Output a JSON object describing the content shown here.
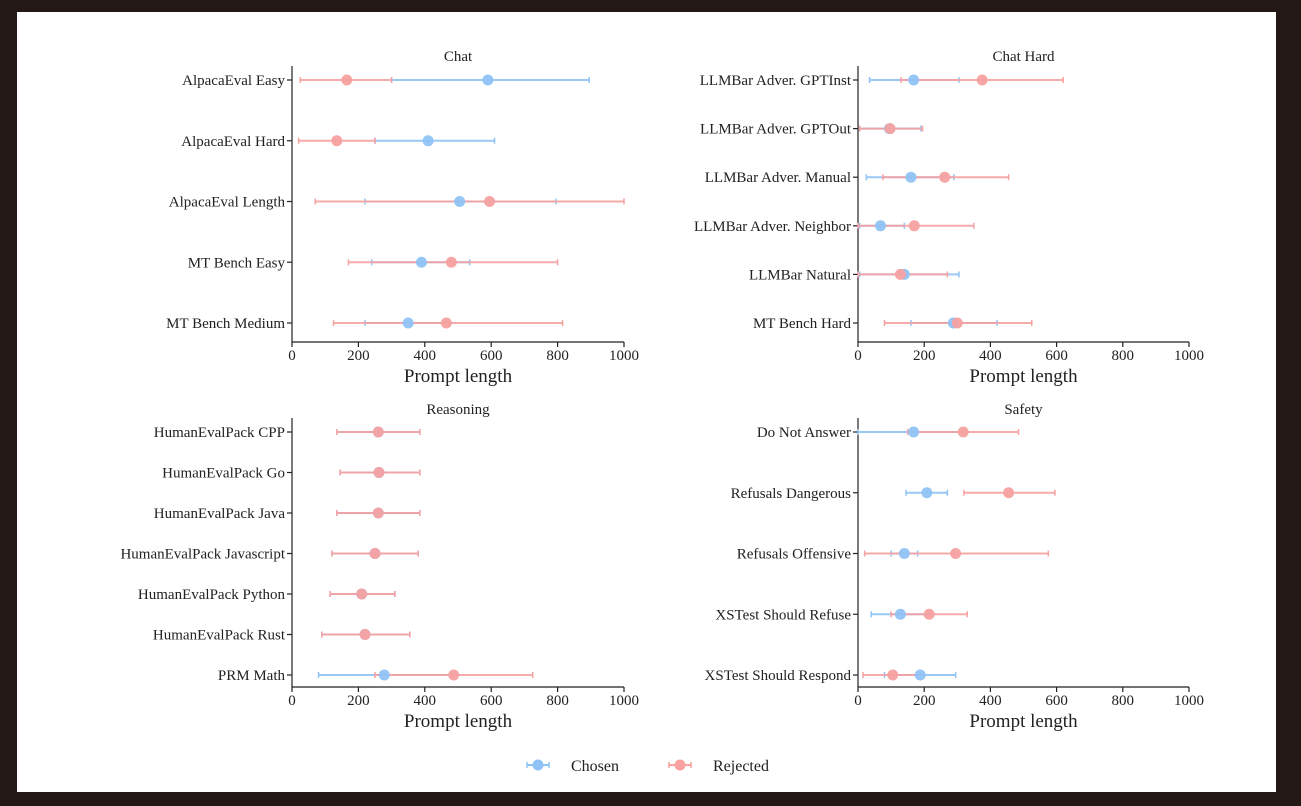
{
  "figure": {
    "legend": [
      {
        "name": "Chosen",
        "color": "#8fc3f5"
      },
      {
        "name": "Rejected",
        "color": "#f7a1a1"
      }
    ]
  },
  "chart_data": [
    {
      "type": "errorbar",
      "title": "Chat",
      "xlabel": "Prompt length",
      "xlim": [
        0,
        1000
      ],
      "xticks": [
        0,
        200,
        400,
        600,
        800,
        1000
      ],
      "categories": [
        "AlpacaEval Easy",
        "AlpacaEval Hard",
        "AlpacaEval Length",
        "MT Bench Easy",
        "MT Bench Medium"
      ],
      "series": [
        {
          "name": "Chosen",
          "color": "#8fc3f5",
          "mean": [
            590,
            410,
            505,
            390,
            350
          ],
          "low": [
            300,
            250,
            220,
            240,
            220
          ],
          "high": [
            895,
            610,
            795,
            535,
            470
          ]
        },
        {
          "name": "Rejected",
          "color": "#f7a1a1",
          "mean": [
            165,
            135,
            595,
            480,
            465
          ],
          "low": [
            25,
            20,
            70,
            170,
            125
          ],
          "high": [
            300,
            250,
            1000,
            800,
            815
          ]
        }
      ]
    },
    {
      "type": "errorbar",
      "title": "Chat Hard",
      "xlabel": "Prompt length",
      "xlim": [
        0,
        1000
      ],
      "xticks": [
        0,
        200,
        400,
        600,
        800,
        1000
      ],
      "categories": [
        "LLMBar Adver. GPTInst",
        "LLMBar Adver. GPTOut",
        "LLMBar Adver. Manual",
        "LLMBar Adver. Neighbor",
        "LLMBar Natural",
        "MT Bench Hard"
      ],
      "series": [
        {
          "name": "Chosen",
          "color": "#8fc3f5",
          "mean": [
            168,
            95,
            160,
            68,
            140,
            288
          ],
          "low": [
            35,
            5,
            25,
            5,
            5,
            160
          ],
          "high": [
            305,
            190,
            290,
            140,
            305,
            420
          ]
        },
        {
          "name": "Rejected",
          "color": "#f7a1a1",
          "mean": [
            375,
            97,
            262,
            170,
            128,
            300
          ],
          "low": [
            130,
            5,
            75,
            0,
            0,
            80
          ],
          "high": [
            620,
            195,
            455,
            350,
            270,
            525
          ]
        }
      ]
    },
    {
      "type": "errorbar",
      "title": "Reasoning",
      "xlabel": "Prompt length",
      "xlim": [
        0,
        1000
      ],
      "xticks": [
        0,
        200,
        400,
        600,
        800,
        1000
      ],
      "categories": [
        "HumanEvalPack CPP",
        "HumanEvalPack Go",
        "HumanEvalPack Java",
        "HumanEvalPack Javascript",
        "HumanEvalPack Python",
        "HumanEvalPack Rust",
        "PRM Math"
      ],
      "series": [
        {
          "name": "Chosen",
          "color": "#8fc3f5",
          "mean": [
            260,
            262,
            260,
            250,
            210,
            220,
            278
          ],
          "low": [
            135,
            145,
            135,
            120,
            115,
            90,
            80
          ],
          "high": [
            385,
            385,
            385,
            380,
            310,
            355,
            480
          ]
        },
        {
          "name": "Rejected",
          "color": "#f7a1a1",
          "mean": [
            260,
            262,
            260,
            250,
            210,
            220,
            487
          ],
          "low": [
            135,
            145,
            135,
            120,
            115,
            90,
            250
          ],
          "high": [
            385,
            385,
            385,
            380,
            310,
            355,
            725
          ]
        }
      ]
    },
    {
      "type": "errorbar",
      "title": "Safety",
      "xlabel": "Prompt length",
      "xlim": [
        0,
        1000
      ],
      "xticks": [
        0,
        200,
        400,
        600,
        800,
        1000
      ],
      "categories": [
        "Do Not Answer",
        "Refusals Dangerous",
        "Refusals Offensive",
        "XSTest Should Refuse",
        "XSTest Should Respond"
      ],
      "series": [
        {
          "name": "Chosen",
          "color": "#8fc3f5",
          "mean": [
            168,
            208,
            140,
            128,
            188
          ],
          "low": [
            0,
            145,
            100,
            40,
            80
          ],
          "high": [
            320,
            270,
            180,
            215,
            295
          ]
        },
        {
          "name": "Rejected",
          "color": "#f7a1a1",
          "mean": [
            318,
            455,
            295,
            215,
            105
          ],
          "low": [
            150,
            320,
            20,
            100,
            15
          ],
          "high": [
            485,
            595,
            575,
            330,
            200
          ]
        }
      ]
    }
  ]
}
